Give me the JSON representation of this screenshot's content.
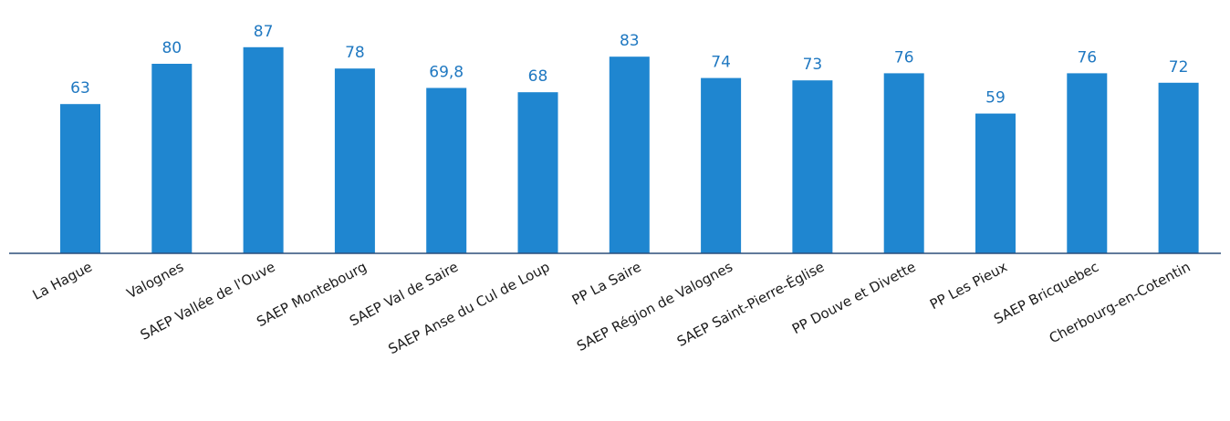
{
  "chart_data": {
    "type": "bar",
    "categories": [
      "La Hague",
      "Valognes",
      "SAEP Vallée de l'Ouve",
      "SAEP Montebourg",
      "SAEP Val de Saire",
      "SAEP Anse du Cul de Loup",
      "PP La Saire",
      "SAEP Région de Valognes",
      "SAEP Saint-Pierre-Église",
      "PP Douve et Divette",
      "PP Les Pieux",
      "SAEP Bricquebec",
      "Cherbourg-en-Cotentin"
    ],
    "values": [
      63,
      80,
      87,
      78,
      69.8,
      68,
      83,
      74,
      73,
      76,
      59,
      76,
      72
    ],
    "value_labels": [
      "63",
      "80",
      "87",
      "78",
      "69,8",
      "68",
      "83",
      "74",
      "73",
      "76",
      "59",
      "76",
      "72"
    ],
    "title": "",
    "xlabel": "",
    "ylabel": "",
    "ylim": [
      0,
      100
    ],
    "grid": false,
    "colors": {
      "bar": "#1f86d0",
      "value_label": "#1f78c1",
      "axis": "#2b4f7a"
    }
  }
}
